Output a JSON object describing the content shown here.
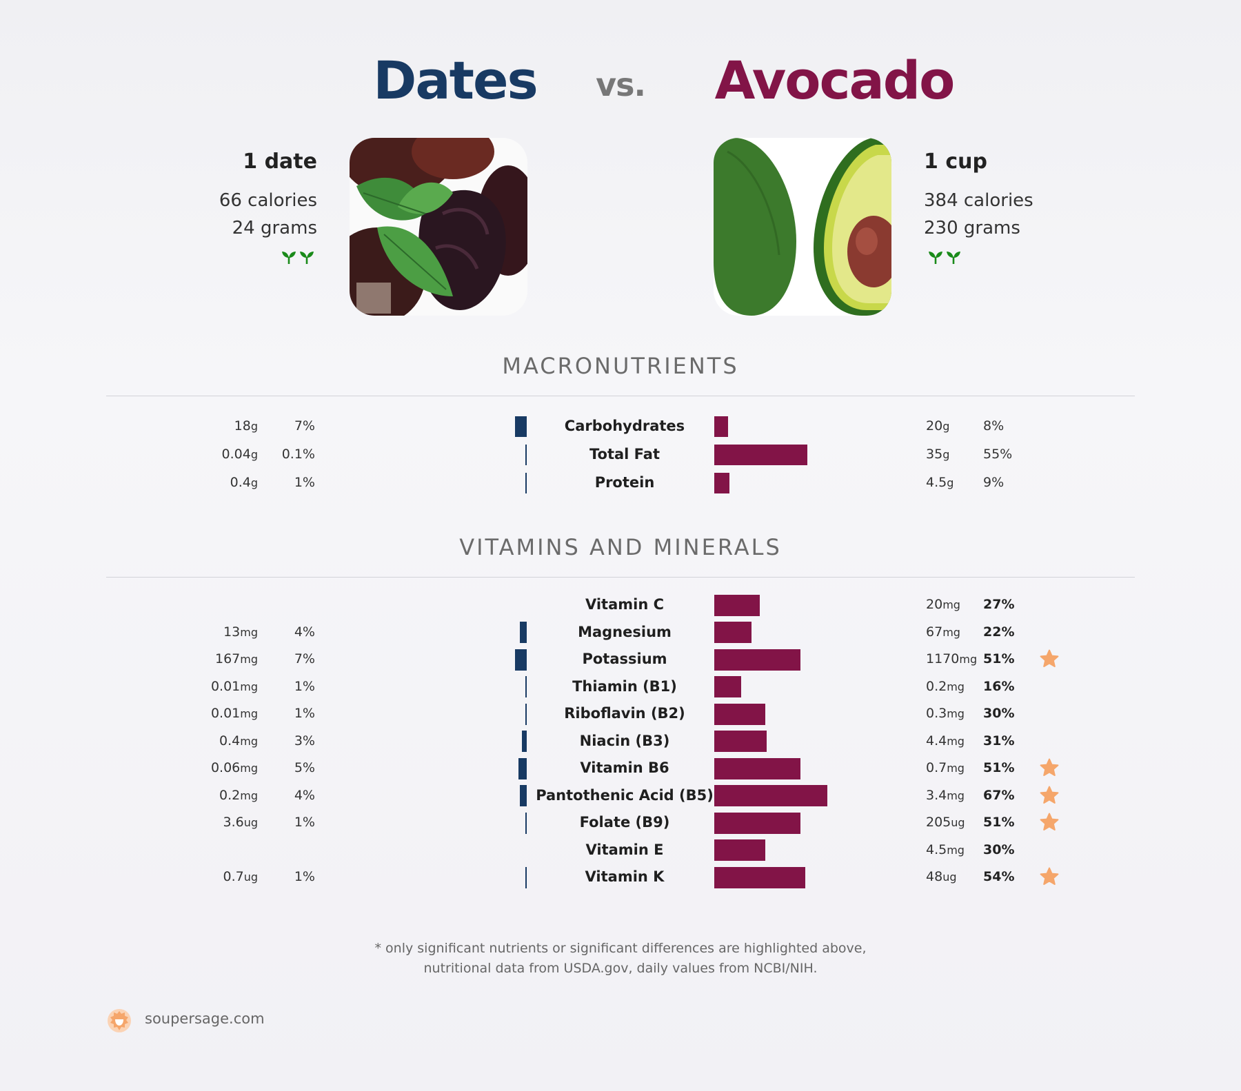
{
  "header": {
    "left_food": "Dates",
    "vs": "vs.",
    "right_food": "Avocado"
  },
  "left": {
    "serving": "1 date",
    "calories": "66 calories",
    "grams": "24 grams",
    "color": "#183a63"
  },
  "right": {
    "serving": "1 cup",
    "calories": "384 calories",
    "grams": "230 grams",
    "color": "#821447"
  },
  "sections": {
    "macros": "MACRONUTRIENTS",
    "vitamins": "VITAMINS AND MINERALS"
  },
  "chart_data": {
    "type": "bar",
    "series": [
      {
        "name": "Dates",
        "color": "#183a63"
      },
      {
        "name": "Avocado",
        "color": "#821447"
      }
    ],
    "macronutrients": [
      {
        "name": "Carbohydrates",
        "left_value": "18",
        "left_unit": "g",
        "left_pct": "7%",
        "left_num": 7,
        "right_value": "20",
        "right_unit": "g",
        "right_pct": "8%",
        "right_num": 8,
        "star": false
      },
      {
        "name": "Total Fat",
        "left_value": "0.04",
        "left_unit": "g",
        "left_pct": "0.1%",
        "left_num": 0.1,
        "right_value": "35",
        "right_unit": "g",
        "right_pct": "55%",
        "right_num": 55,
        "star": false
      },
      {
        "name": "Protein",
        "left_value": "0.4",
        "left_unit": "g",
        "left_pct": "1%",
        "left_num": 1,
        "right_value": "4.5",
        "right_unit": "g",
        "right_pct": "9%",
        "right_num": 9,
        "star": false
      }
    ],
    "vitamins": [
      {
        "name": "Vitamin C",
        "left_value": "",
        "left_unit": "",
        "left_pct": "",
        "left_num": 0,
        "right_value": "20",
        "right_unit": "mg",
        "right_pct": "27%",
        "right_num": 27,
        "star": false
      },
      {
        "name": "Magnesium",
        "left_value": "13",
        "left_unit": "mg",
        "left_pct": "4%",
        "left_num": 4,
        "right_value": "67",
        "right_unit": "mg",
        "right_pct": "22%",
        "right_num": 22,
        "star": false
      },
      {
        "name": "Potassium",
        "left_value": "167",
        "left_unit": "mg",
        "left_pct": "7%",
        "left_num": 7,
        "right_value": "1170",
        "right_unit": "mg",
        "right_pct": "51%",
        "right_num": 51,
        "star": true
      },
      {
        "name": "Thiamin (B1)",
        "left_value": "0.01",
        "left_unit": "mg",
        "left_pct": "1%",
        "left_num": 1,
        "right_value": "0.2",
        "right_unit": "mg",
        "right_pct": "16%",
        "right_num": 16,
        "star": false
      },
      {
        "name": "Riboflavin (B2)",
        "left_value": "0.01",
        "left_unit": "mg",
        "left_pct": "1%",
        "left_num": 1,
        "right_value": "0.3",
        "right_unit": "mg",
        "right_pct": "30%",
        "right_num": 30,
        "star": false
      },
      {
        "name": "Niacin (B3)",
        "left_value": "0.4",
        "left_unit": "mg",
        "left_pct": "3%",
        "left_num": 3,
        "right_value": "4.4",
        "right_unit": "mg",
        "right_pct": "31%",
        "right_num": 31,
        "star": false
      },
      {
        "name": "Vitamin B6",
        "left_value": "0.06",
        "left_unit": "mg",
        "left_pct": "5%",
        "left_num": 5,
        "right_value": "0.7",
        "right_unit": "mg",
        "right_pct": "51%",
        "right_num": 51,
        "star": true
      },
      {
        "name": "Pantothenic Acid (B5)",
        "left_value": "0.2",
        "left_unit": "mg",
        "left_pct": "4%",
        "left_num": 4,
        "right_value": "3.4",
        "right_unit": "mg",
        "right_pct": "67%",
        "right_num": 67,
        "star": true
      },
      {
        "name": "Folate (B9)",
        "left_value": "3.6",
        "left_unit": "ug",
        "left_pct": "1%",
        "left_num": 1,
        "right_value": "205",
        "right_unit": "ug",
        "right_pct": "51%",
        "right_num": 51,
        "star": true
      },
      {
        "name": "Vitamin E",
        "left_value": "",
        "left_unit": "",
        "left_pct": "",
        "left_num": 0,
        "right_value": "4.5",
        "right_unit": "mg",
        "right_pct": "30%",
        "right_num": 30,
        "star": false
      },
      {
        "name": "Vitamin K",
        "left_value": "0.7",
        "left_unit": "ug",
        "left_pct": "1%",
        "left_num": 1,
        "right_value": "48",
        "right_unit": "ug",
        "right_pct": "54%",
        "right_num": 54,
        "star": true
      }
    ]
  },
  "footnote": {
    "line1": "* only significant nutrients or significant differences are highlighted above,",
    "line2": "nutritional data from USDA.gov, daily values from NCBI/NIH."
  },
  "footer": {
    "site": "soupersage.com"
  },
  "icons": {
    "sprout": "sprout-icon",
    "star": "star-icon",
    "logo": "soupersage-logo-icon",
    "star_color": "#f5a66b",
    "sprout_color": "#1a8a1a"
  }
}
